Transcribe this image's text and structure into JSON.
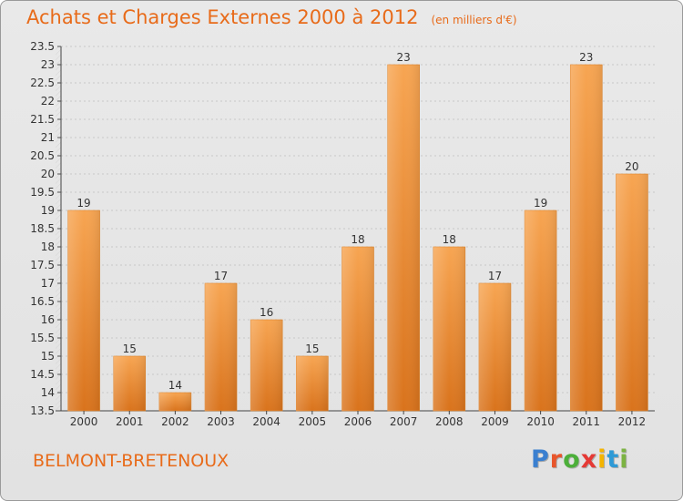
{
  "chart_data": {
    "type": "bar",
    "title": "Achats et Charges Externes 2000 à 2012",
    "unit": "(en milliers d'€)",
    "categories": [
      "2000",
      "2001",
      "2002",
      "2003",
      "2004",
      "2005",
      "2006",
      "2007",
      "2008",
      "2009",
      "2010",
      "2011",
      "2012"
    ],
    "values": [
      19,
      15,
      14,
      17,
      16,
      15,
      18,
      23,
      18,
      17,
      19,
      23,
      20
    ],
    "ylim": [
      13.5,
      23.5
    ],
    "yticks": [
      "13.5",
      "14",
      "14.5",
      "15",
      "15.5",
      "16",
      "16.5",
      "17",
      "17.5",
      "18",
      "18.5",
      "19",
      "19.5",
      "20",
      "20.5",
      "21",
      "21.5",
      "22",
      "22.5",
      "23",
      "23.5"
    ],
    "grid": true,
    "bar_color": "#f0963c",
    "xlabel": "",
    "ylabel": ""
  },
  "footer": {
    "commune": "BELMONT-BRETENOUX",
    "logo_letters": [
      "P",
      "r",
      "o",
      "x",
      "i",
      "t",
      "i"
    ],
    "logo_colors": [
      "#3a7fd0",
      "#e8552b",
      "#4caf3a",
      "#e53935",
      "#f4b400",
      "#2e9ad6",
      "#7cb342"
    ]
  },
  "colors": {
    "accent": "#e86b1a",
    "bar": "#f0963c"
  }
}
